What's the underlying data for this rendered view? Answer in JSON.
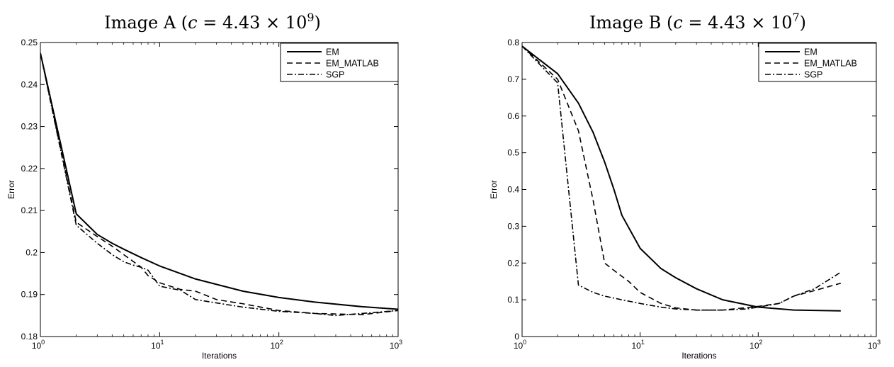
{
  "chart_data": [
    {
      "type": "line",
      "title": "Image A (c = 4.43 × 10^9)",
      "title_parts": {
        "prefix": "Image A (",
        "var": "c",
        "eq": " = 4.43 × 10",
        "exp": "9",
        "suffix": ")"
      },
      "xlabel": "Iterations",
      "ylabel": "Error",
      "xscale": "log",
      "xlim": [
        1,
        1000
      ],
      "ylim": [
        0.18,
        0.25
      ],
      "xticks": [
        1,
        10,
        100,
        1000
      ],
      "xtick_labels": [
        {
          "base": "10",
          "exp": "0"
        },
        {
          "base": "10",
          "exp": "1"
        },
        {
          "base": "10",
          "exp": "2"
        },
        {
          "base": "10",
          "exp": "3"
        }
      ],
      "yticks": [
        0.18,
        0.19,
        0.2,
        0.21,
        0.22,
        0.23,
        0.24,
        0.25
      ],
      "ytick_labels": [
        "0.18",
        "0.19",
        "0.2",
        "0.21",
        "0.22",
        "0.23",
        "0.24",
        "0.25"
      ],
      "grid": false,
      "legend_position": "top-right",
      "series": [
        {
          "name": "EM",
          "style": "solid",
          "x": [
            1,
            2,
            3,
            4,
            5,
            7,
            10,
            20,
            50,
            100,
            200,
            500,
            1000
          ],
          "y": [
            0.2475,
            0.2092,
            0.2043,
            0.2022,
            0.2008,
            0.1988,
            0.1968,
            0.1937,
            0.1908,
            0.1893,
            0.1882,
            0.1871,
            0.1865
          ]
        },
        {
          "name": "EM_MATLAB",
          "style": "dashed",
          "x": [
            1,
            2,
            3,
            4,
            5,
            7,
            8,
            10,
            15,
            20,
            30,
            50,
            100,
            200,
            500,
            1000
          ],
          "y": [
            0.2475,
            0.2072,
            0.2038,
            0.2015,
            0.1995,
            0.1965,
            0.1945,
            0.1928,
            0.1912,
            0.1908,
            0.1888,
            0.1878,
            0.1862,
            0.1855,
            0.1852,
            0.1862
          ]
        },
        {
          "name": "SGP",
          "style": "dashdot",
          "x": [
            1,
            2,
            3,
            4,
            5,
            6,
            7,
            8,
            10,
            15,
            20,
            30,
            50,
            100,
            200,
            300,
            500,
            1000
          ],
          "y": [
            0.2475,
            0.2065,
            0.2022,
            0.1995,
            0.1978,
            0.197,
            0.1965,
            0.1958,
            0.192,
            0.191,
            0.1888,
            0.188,
            0.187,
            0.186,
            0.1855,
            0.185,
            0.1855,
            0.1862
          ]
        }
      ]
    },
    {
      "type": "line",
      "title": "Image B (c = 4.43 × 10^7)",
      "title_parts": {
        "prefix": "Image B (",
        "var": "c",
        "eq": " = 4.43 × 10",
        "exp": "7",
        "suffix": ")"
      },
      "xlabel": "Iterations",
      "ylabel": "Error",
      "xscale": "log",
      "xlim": [
        1,
        1000
      ],
      "ylim": [
        0,
        0.8
      ],
      "xticks": [
        1,
        10,
        100,
        1000
      ],
      "xtick_labels": [
        {
          "base": "10",
          "exp": "0"
        },
        {
          "base": "10",
          "exp": "1"
        },
        {
          "base": "10",
          "exp": "2"
        },
        {
          "base": "10",
          "exp": "3"
        }
      ],
      "yticks": [
        0,
        0.1,
        0.2,
        0.3,
        0.4,
        0.5,
        0.6,
        0.7,
        0.8
      ],
      "ytick_labels": [
        "0",
        "0.1",
        "0.2",
        "0.3",
        "0.4",
        "0.5",
        "0.6",
        "0.7",
        "0.8"
      ],
      "grid": false,
      "legend_position": "top-right",
      "series": [
        {
          "name": "EM",
          "style": "solid",
          "x": [
            1,
            2,
            3,
            4,
            5,
            6,
            7,
            10,
            15,
            20,
            30,
            50,
            100,
            200,
            500
          ],
          "y": [
            0.79,
            0.715,
            0.635,
            0.555,
            0.475,
            0.4,
            0.33,
            0.24,
            0.185,
            0.16,
            0.13,
            0.1,
            0.08,
            0.072,
            0.07
          ]
        },
        {
          "name": "EM_MATLAB",
          "style": "dashed",
          "x": [
            1,
            2,
            3,
            4,
            5,
            6,
            8,
            10,
            15,
            20,
            30,
            50,
            100,
            150,
            200,
            300,
            500
          ],
          "y": [
            0.79,
            0.7,
            0.56,
            0.37,
            0.2,
            0.18,
            0.15,
            0.12,
            0.09,
            0.078,
            0.072,
            0.072,
            0.082,
            0.09,
            0.11,
            0.125,
            0.145
          ]
        },
        {
          "name": "SGP",
          "style": "dashdot",
          "x": [
            1,
            2,
            3,
            4,
            5,
            7,
            10,
            15,
            20,
            30,
            50,
            80,
            100,
            150,
            200,
            300,
            500
          ],
          "y": [
            0.79,
            0.69,
            0.14,
            0.12,
            0.11,
            0.1,
            0.09,
            0.08,
            0.075,
            0.072,
            0.072,
            0.075,
            0.08,
            0.09,
            0.11,
            0.13,
            0.175
          ]
        }
      ]
    }
  ]
}
